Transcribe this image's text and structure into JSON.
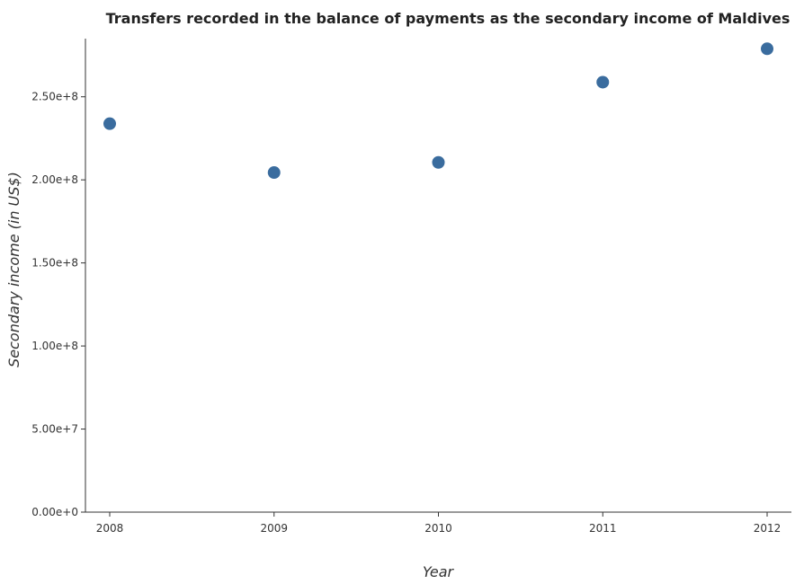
{
  "chart_data": {
    "type": "scatter",
    "title": "Transfers recorded in the balance of payments as the secondary income of Maldives",
    "xlabel": "Year",
    "ylabel": "Secondary income (in US$)",
    "categories": [
      "2008",
      "2009",
      "2010",
      "2011",
      "2012"
    ],
    "values": [
      233800000,
      204400000,
      210500000,
      258800000,
      278900000
    ],
    "ylim": [
      0,
      285000000
    ],
    "yticks": [
      0,
      50000000,
      100000000,
      150000000,
      200000000,
      250000000
    ],
    "ytick_labels": [
      "0.00e+0",
      "5.00e+7",
      "1.00e+8",
      "1.50e+8",
      "2.00e+8",
      "2.50e+8"
    ],
    "grid": false,
    "legend": "none",
    "marker_color": "#3a6c9e"
  }
}
